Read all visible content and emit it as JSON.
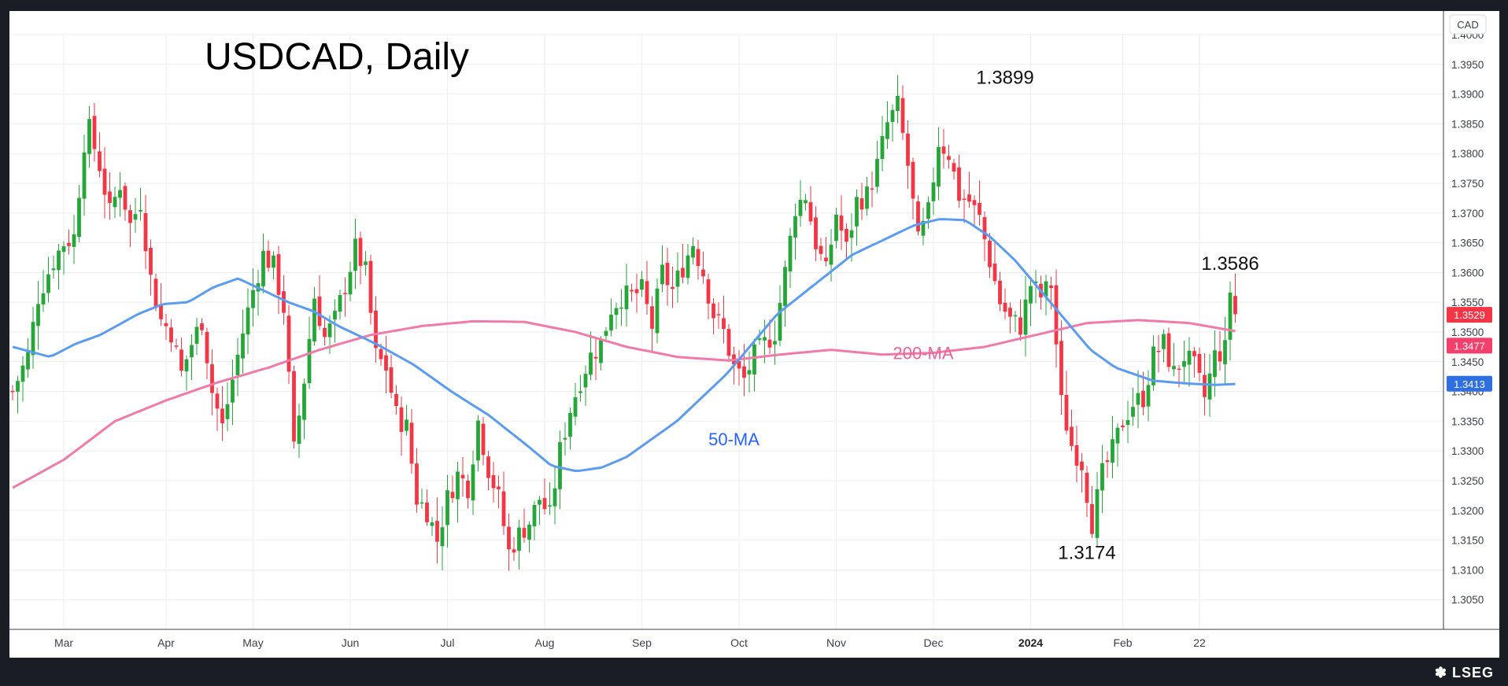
{
  "chart_data": {
    "type": "candlestick",
    "title": "USDCAD, Daily",
    "currency_label": "CAD",
    "ylim": [
      1.3,
      1.4
    ],
    "y_ticks": [
      "1.4000",
      "1.3950",
      "1.3900",
      "1.3850",
      "1.3800",
      "1.3750",
      "1.3700",
      "1.3650",
      "1.3600",
      "1.3550",
      "1.3500",
      "1.3450",
      "1.3400",
      "1.3350",
      "1.3300",
      "1.3250",
      "1.3200",
      "1.3150",
      "1.3100",
      "1.3050"
    ],
    "x_ticks": [
      {
        "label": "Mar",
        "bold": false
      },
      {
        "label": "Apr",
        "bold": false
      },
      {
        "label": "May",
        "bold": false
      },
      {
        "label": "Jun",
        "bold": false
      },
      {
        "label": "Jul",
        "bold": false
      },
      {
        "label": "Aug",
        "bold": false
      },
      {
        "label": "Sep",
        "bold": false
      },
      {
        "label": "Oct",
        "bold": false
      },
      {
        "label": "Nov",
        "bold": false
      },
      {
        "label": "Dec",
        "bold": false
      },
      {
        "label": "2024",
        "bold": true
      },
      {
        "label": "Feb",
        "bold": false
      },
      {
        "label": "22",
        "bold": false
      }
    ],
    "badges": [
      {
        "label": "1.3529",
        "value": 1.3529,
        "color": "#f23645"
      },
      {
        "label": "1.3477",
        "value": 1.3477,
        "color": "#f23f6c"
      },
      {
        "label": "1.3413",
        "value": 1.3413,
        "color": "#2f6fe0"
      }
    ],
    "annotations": [
      {
        "label": "1.3899",
        "value": 1.3899,
        "bar": 194,
        "pos": "above"
      },
      {
        "label": "1.3586",
        "value": 1.3586,
        "bar": 238,
        "pos": "above"
      },
      {
        "label": "1.3174",
        "value": 1.3174,
        "bar": 210,
        "pos": "below"
      }
    ],
    "series_labels": [
      {
        "label": "50-MA",
        "color": "#2962ff",
        "bar": 141,
        "value": 1.332
      },
      {
        "label": "200-MA",
        "color": "#e8649a",
        "bar": 178,
        "value": 1.3465
      }
    ],
    "close_anchors": [
      [
        0,
        1.34
      ],
      [
        3,
        1.346
      ],
      [
        5,
        1.356
      ],
      [
        8,
        1.362
      ],
      [
        10,
        1.365
      ],
      [
        12,
        1.366
      ],
      [
        14,
        1.382
      ],
      [
        15,
        1.384
      ],
      [
        17,
        1.378
      ],
      [
        19,
        1.37
      ],
      [
        21,
        1.375
      ],
      [
        23,
        1.368
      ],
      [
        25,
        1.372
      ],
      [
        27,
        1.359
      ],
      [
        29,
        1.352
      ],
      [
        31,
        1.35
      ],
      [
        33,
        1.343
      ],
      [
        35,
        1.348
      ],
      [
        37,
        1.352
      ],
      [
        39,
        1.34
      ],
      [
        41,
        1.334
      ],
      [
        43,
        1.342
      ],
      [
        45,
        1.35
      ],
      [
        47,
        1.357
      ],
      [
        49,
        1.363
      ],
      [
        51,
        1.361
      ],
      [
        53,
        1.354
      ],
      [
        55,
        1.33
      ],
      [
        57,
        1.342
      ],
      [
        59,
        1.356
      ],
      [
        61,
        1.349
      ],
      [
        63,
        1.352
      ],
      [
        65,
        1.358
      ],
      [
        67,
        1.364
      ],
      [
        69,
        1.36
      ],
      [
        71,
        1.346
      ],
      [
        73,
        1.344
      ],
      [
        75,
        1.336
      ],
      [
        77,
        1.334
      ],
      [
        79,
        1.322
      ],
      [
        81,
        1.32
      ],
      [
        83,
        1.315
      ],
      [
        85,
        1.322
      ],
      [
        87,
        1.326
      ],
      [
        89,
        1.324
      ],
      [
        91,
        1.335
      ],
      [
        93,
        1.327
      ],
      [
        95,
        1.322
      ],
      [
        97,
        1.313
      ],
      [
        99,
        1.316
      ],
      [
        101,
        1.318
      ],
      [
        103,
        1.322
      ],
      [
        105,
        1.319
      ],
      [
        107,
        1.33
      ],
      [
        109,
        1.337
      ],
      [
        111,
        1.342
      ],
      [
        113,
        1.346
      ],
      [
        115,
        1.348
      ],
      [
        117,
        1.354
      ],
      [
        119,
        1.356
      ],
      [
        121,
        1.356
      ],
      [
        123,
        1.357
      ],
      [
        125,
        1.351
      ],
      [
        127,
        1.36
      ],
      [
        129,
        1.357
      ],
      [
        131,
        1.361
      ],
      [
        133,
        1.365
      ],
      [
        135,
        1.36
      ],
      [
        137,
        1.353
      ],
      [
        139,
        1.35
      ],
      [
        141,
        1.344
      ],
      [
        143,
        1.342
      ],
      [
        145,
        1.346
      ],
      [
        147,
        1.348
      ],
      [
        149,
        1.35
      ],
      [
        151,
        1.36
      ],
      [
        153,
        1.371
      ],
      [
        155,
        1.373
      ],
      [
        157,
        1.365
      ],
      [
        159,
        1.36
      ],
      [
        161,
        1.37
      ],
      [
        163,
        1.364
      ],
      [
        165,
        1.372
      ],
      [
        167,
        1.373
      ],
      [
        169,
        1.378
      ],
      [
        171,
        1.385
      ],
      [
        173,
        1.388
      ],
      [
        175,
        1.378
      ],
      [
        177,
        1.365
      ],
      [
        179,
        1.37
      ],
      [
        181,
        1.382
      ],
      [
        183,
        1.38
      ],
      [
        185,
        1.373
      ],
      [
        187,
        1.372
      ],
      [
        189,
        1.369
      ],
      [
        191,
        1.362
      ],
      [
        193,
        1.355
      ],
      [
        195,
        1.352
      ],
      [
        197,
        1.351
      ],
      [
        199,
        1.358
      ],
      [
        201,
        1.356
      ],
      [
        203,
        1.358
      ],
      [
        205,
        1.338
      ],
      [
        207,
        1.331
      ],
      [
        209,
        1.328
      ],
      [
        211,
        1.318
      ],
      [
        213,
        1.326
      ],
      [
        215,
        1.33
      ],
      [
        217,
        1.335
      ],
      [
        219,
        1.338
      ],
      [
        221,
        1.339
      ],
      [
        223,
        1.346
      ],
      [
        225,
        1.348
      ],
      [
        227,
        1.343
      ],
      [
        229,
        1.346
      ],
      [
        231,
        1.344
      ],
      [
        233,
        1.339
      ],
      [
        235,
        1.346
      ],
      [
        237,
        1.347
      ],
      [
        238,
        1.357
      ],
      [
        239,
        1.353
      ]
    ],
    "ma50_anchors": [
      [
        0,
        1.3475
      ],
      [
        6,
        1.3458
      ],
      [
        10,
        1.348
      ],
      [
        14,
        1.3495
      ],
      [
        20,
        1.353
      ],
      [
        24,
        1.3547
      ],
      [
        28,
        1.355
      ],
      [
        32,
        1.3575
      ],
      [
        36,
        1.359
      ],
      [
        40,
        1.357
      ],
      [
        44,
        1.355
      ],
      [
        48,
        1.3535
      ],
      [
        52,
        1.351
      ],
      [
        58,
        1.348
      ],
      [
        64,
        1.3445
      ],
      [
        70,
        1.34
      ],
      [
        76,
        1.336
      ],
      [
        82,
        1.331
      ],
      [
        86,
        1.3275
      ],
      [
        90,
        1.3266
      ],
      [
        94,
        1.3272
      ],
      [
        98,
        1.329
      ],
      [
        102,
        1.332
      ],
      [
        106,
        1.335
      ],
      [
        110,
        1.339
      ],
      [
        114,
        1.343
      ],
      [
        118,
        1.348
      ],
      [
        122,
        1.353
      ],
      [
        128,
        1.358
      ],
      [
        134,
        1.363
      ],
      [
        140,
        1.366
      ],
      [
        144,
        1.368
      ],
      [
        148,
        1.369
      ],
      [
        152,
        1.3688
      ],
      [
        156,
        1.366
      ],
      [
        160,
        1.362
      ],
      [
        164,
        1.357
      ],
      [
        168,
        1.352
      ],
      [
        172,
        1.347
      ],
      [
        176,
        1.344
      ],
      [
        182,
        1.3418
      ],
      [
        188,
        1.3413
      ],
      [
        192,
        1.3411
      ],
      [
        196,
        1.3413
      ]
    ],
    "ma200_anchors": [
      [
        0,
        1.3238
      ],
      [
        10,
        1.3285
      ],
      [
        20,
        1.335
      ],
      [
        30,
        1.3385
      ],
      [
        40,
        1.3415
      ],
      [
        50,
        1.344
      ],
      [
        60,
        1.347
      ],
      [
        70,
        1.3495
      ],
      [
        80,
        1.351
      ],
      [
        90,
        1.3518
      ],
      [
        100,
        1.3517
      ],
      [
        110,
        1.35
      ],
      [
        120,
        1.3475
      ],
      [
        130,
        1.3458
      ],
      [
        140,
        1.3452
      ],
      [
        150,
        1.3462
      ],
      [
        160,
        1.347
      ],
      [
        170,
        1.3462
      ],
      [
        180,
        1.3465
      ],
      [
        190,
        1.3475
      ],
      [
        200,
        1.3495
      ],
      [
        210,
        1.3515
      ],
      [
        220,
        1.352
      ],
      [
        230,
        1.3515
      ],
      [
        240,
        1.35
      ],
      [
        250,
        1.3485
      ],
      [
        260,
        1.3478
      ],
      [
        270,
        1.3477
      ]
    ],
    "series": [
      {
        "name": "50-MA",
        "color": "#5b9cf0"
      },
      {
        "name": "200-MA",
        "color": "#f07aa8"
      }
    ],
    "colors": {
      "up": "#26a639",
      "down": "#f23645",
      "grid": "#edeef1",
      "axis": "#3b3f4a"
    }
  },
  "footer": {
    "brand": "LSEG"
  }
}
